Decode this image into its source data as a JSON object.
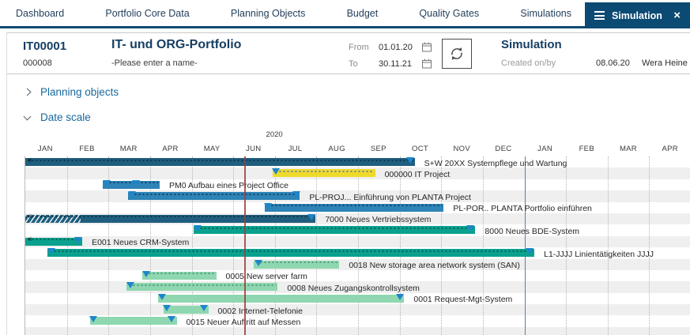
{
  "nav": {
    "items": [
      "Dashboard",
      "Portfolio Core Data",
      "Planning Objects",
      "Budget",
      "Quality Gates",
      "Simulations"
    ],
    "active_tab": "Simulation"
  },
  "header": {
    "id": "IT00001",
    "sub_id": "000008",
    "name": "IT- und ORG-Portfolio",
    "name_placeholder": "-Please enter a name-",
    "from_label": "From",
    "from_value": "01.01.20",
    "to_label": "To",
    "to_value": "30.11.21",
    "panel_title": "Simulation",
    "created_label": "Created on/by",
    "created_date": "08.06.20",
    "created_by": "Wera Heine"
  },
  "sections": {
    "planning_objects": "Planning objects",
    "date_scale": "Date scale"
  },
  "colors": {
    "accent": "#0b4a72",
    "today_line": "#9c3e3c",
    "bar_navy": "#1f5e7e",
    "bar_blue": "#2e83b7",
    "bar_teal": "#0aa18f",
    "bar_green": "#8fd7b0",
    "bar_yellow": "#eeda2b",
    "marker": "#1e86ca"
  },
  "gantt": {
    "type": "gantt",
    "year_label": "2020",
    "year_center_month": 6,
    "total_months": 16,
    "months": [
      "JAN",
      "FEB",
      "MAR",
      "APR",
      "MAY",
      "JUN",
      "JUL",
      "AUG",
      "SEP",
      "OCT",
      "NOV",
      "DEC",
      "JAN",
      "FEB",
      "MAR",
      "APR"
    ],
    "today_month": 5.27,
    "year_line_month": 12,
    "rows": [
      {
        "label": "S+W 20XX Systempflege und Wartung",
        "start": 0,
        "end": 9.36,
        "color": "navy",
        "dotted": true,
        "continues_left": true,
        "markers": [
          9.25
        ]
      },
      {
        "label": "000000 IT Project",
        "start": 5.94,
        "end": 8.41,
        "color": "yellow",
        "dotted": true,
        "markers": [
          6.03
        ]
      },
      {
        "label": "PM0 Aufbau eines Project Office",
        "start": 1.86,
        "end": 3.23,
        "color": "blue",
        "dotted": true,
        "markers": [
          1.95,
          2.66
        ]
      },
      {
        "label": "PL-PROJ... Einführung von PLANTA Project",
        "start": 2.47,
        "end": 6.6,
        "color": "blue",
        "dotted": true,
        "markers": [
          2.56,
          6.52
        ]
      },
      {
        "label": "PL-POR.. PLANTA Portfolio einführen",
        "start": 5.75,
        "end": 10.06,
        "color": "blue",
        "dotted": true,
        "markers": [
          5.84
        ]
      },
      {
        "label": "7000 Neues Vertriebssystem",
        "start": 0,
        "end": 6.98,
        "color": "navy",
        "dotted": true,
        "continues_left": true,
        "hatch_end": 1.33,
        "markers": [
          6.88
        ]
      },
      {
        "label": "8000 Neues BDE-System",
        "start": 4.04,
        "end": 10.82,
        "color": "teal",
        "dotted": true,
        "markers": [
          4.14,
          10.7
        ]
      },
      {
        "label": "E001 Neues CRM-System",
        "start": 0,
        "end": 1.37,
        "color": "teal",
        "dotted": true,
        "continues_left": true,
        "markers": [
          1.27
        ]
      },
      {
        "label": "L1-JJJJ Linientätigkeiten JJJJ",
        "start": 0.53,
        "end": 12.24,
        "color": "teal",
        "dotted": true,
        "markers": [
          0.63,
          12.12
        ]
      },
      {
        "label": "0018 New storage area network system (SAN)",
        "start": 5.5,
        "end": 7.55,
        "color": "green",
        "dotted": true,
        "markers": [
          5.6
        ]
      },
      {
        "label": "0005 New server farm",
        "start": 2.81,
        "end": 4.59,
        "color": "green",
        "dotted": true,
        "markers": [
          2.9
        ]
      },
      {
        "label": "0008 Neues Zugangskontrollsystem",
        "start": 2.43,
        "end": 6.07,
        "color": "green",
        "dotted": true,
        "markers": [
          2.52
        ]
      },
      {
        "label": "0001 Request-Mgt-System",
        "start": 3.19,
        "end": 9.11,
        "color": "green",
        "dotted": false,
        "markers": [
          3.28,
          9
        ]
      },
      {
        "label": "0002 Internet-Telefonie",
        "start": 3.32,
        "end": 4.4,
        "color": "green",
        "dotted": false,
        "markers": [
          3.4,
          4.3
        ]
      },
      {
        "label": "0015 Neuer Auftritt auf Messen",
        "start": 1.56,
        "end": 3.64,
        "color": "green",
        "dotted": false,
        "markers": [
          1.63,
          3.52
        ]
      }
    ]
  }
}
